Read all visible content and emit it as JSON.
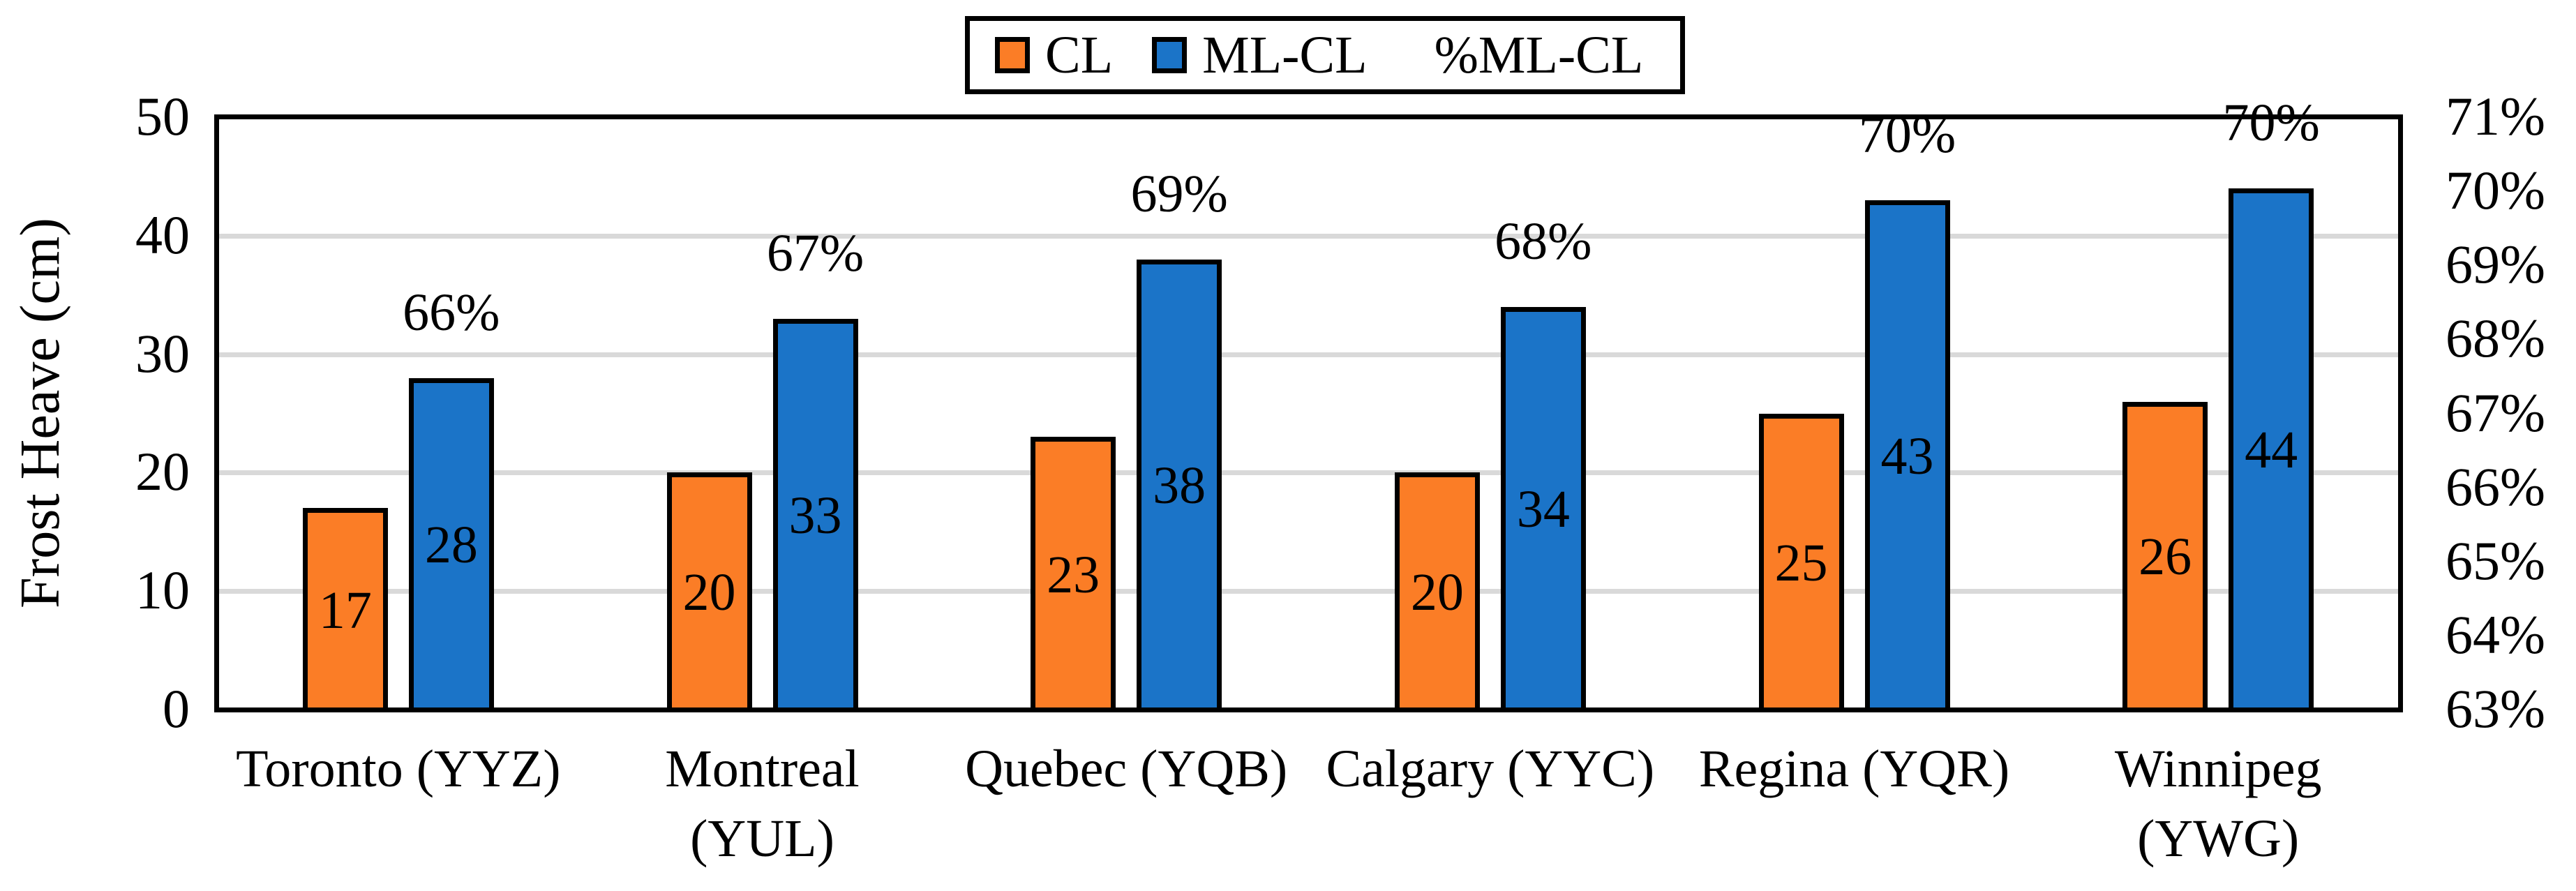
{
  "chart_data": {
    "type": "bar",
    "title": "",
    "categories": [
      {
        "lines": [
          "Toronto (YYZ)"
        ]
      },
      {
        "lines": [
          "Montreal",
          "(YUL)"
        ]
      },
      {
        "lines": [
          "Quebec (YQB)"
        ]
      },
      {
        "lines": [
          "Calgary (YYC)"
        ]
      },
      {
        "lines": [
          "Regina (YQR)"
        ]
      },
      {
        "lines": [
          "Winnipeg",
          "(YWG)"
        ]
      }
    ],
    "series": [
      {
        "name": "CL",
        "axis": "left",
        "color": "#FB7D26",
        "values": [
          17,
          20,
          23,
          20,
          25,
          26
        ]
      },
      {
        "name": "ML-CL",
        "axis": "left",
        "color": "#1B74C8",
        "values": [
          28,
          33,
          38,
          34,
          43,
          44
        ]
      },
      {
        "name": "%ML-CL",
        "axis": "right",
        "labels": [
          "66%",
          "67%",
          "69%",
          "68%",
          "70%",
          "70%"
        ]
      }
    ],
    "left_axis": {
      "label": "Frost Heave (cm)",
      "min": 0,
      "max": 50,
      "step": 10,
      "ticks": [
        "0",
        "10",
        "20",
        "30",
        "40",
        "50"
      ]
    },
    "right_axis": {
      "min": 63,
      "max": 71,
      "step": 1,
      "ticks": [
        "63%",
        "64%",
        "65%",
        "66%",
        "67%",
        "68%",
        "69%",
        "70%",
        "71%"
      ]
    },
    "legend": {
      "position": "top",
      "items": [
        "CL",
        "ML-CL",
        "%ML-CL"
      ]
    },
    "grid": true,
    "gridline_values": [
      10,
      20,
      30,
      40
    ],
    "colors": {
      "cl": "#FB7D26",
      "ml_cl": "#1B74C8",
      "gridline": "#D9D9D9",
      "frame": "#000000"
    }
  }
}
